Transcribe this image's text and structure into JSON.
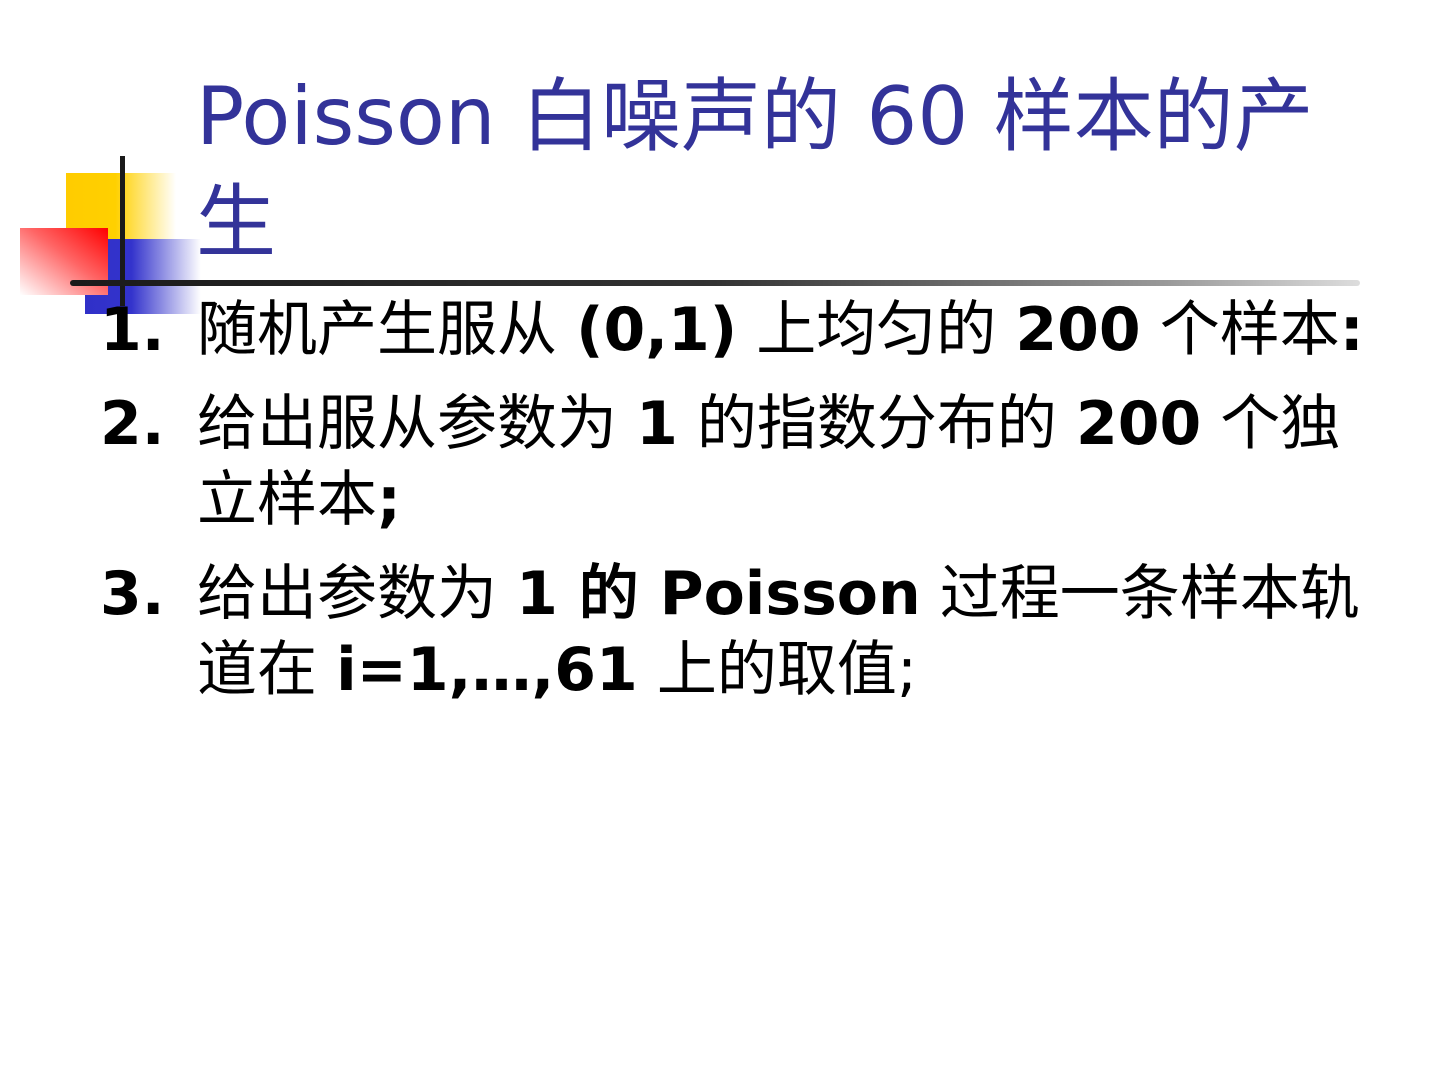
{
  "title": "Poisson 白噪声的 60 样本的产生",
  "items": [
    {
      "number": "1.",
      "segments": [
        {
          "text": "随机产生服从 ",
          "bold": false
        },
        {
          "text": "(0,1)",
          "bold": true
        },
        {
          "text": " 上均匀的 ",
          "bold": false
        },
        {
          "text": "200",
          "bold": true
        },
        {
          "text": " 个样本",
          "bold": false
        },
        {
          "text": ":",
          "bold": true
        }
      ]
    },
    {
      "number": "2.",
      "segments": [
        {
          "text": "给出服从参数为 ",
          "bold": false
        },
        {
          "text": "1",
          "bold": true
        },
        {
          "text": " 的指数分布的 ",
          "bold": false
        },
        {
          "text": "200",
          "bold": true
        },
        {
          "text": " 个独立样本",
          "bold": false
        },
        {
          "text": ";",
          "bold": true
        }
      ]
    },
    {
      "number": "3.",
      "segments": [
        {
          "text": "给出参数为 ",
          "bold": false
        },
        {
          "text": "1 的 Poisson",
          "bold": true
        },
        {
          "text": " 过程一条样本轨道在 ",
          "bold": false
        },
        {
          "text": "i=1,…,61",
          "bold": true
        },
        {
          "text": " 上的取值;",
          "bold": false
        }
      ]
    }
  ],
  "colors": {
    "title": "#333399",
    "yellow": "#ffcc00",
    "red": "#ff0000",
    "blue": "#3333cc"
  }
}
